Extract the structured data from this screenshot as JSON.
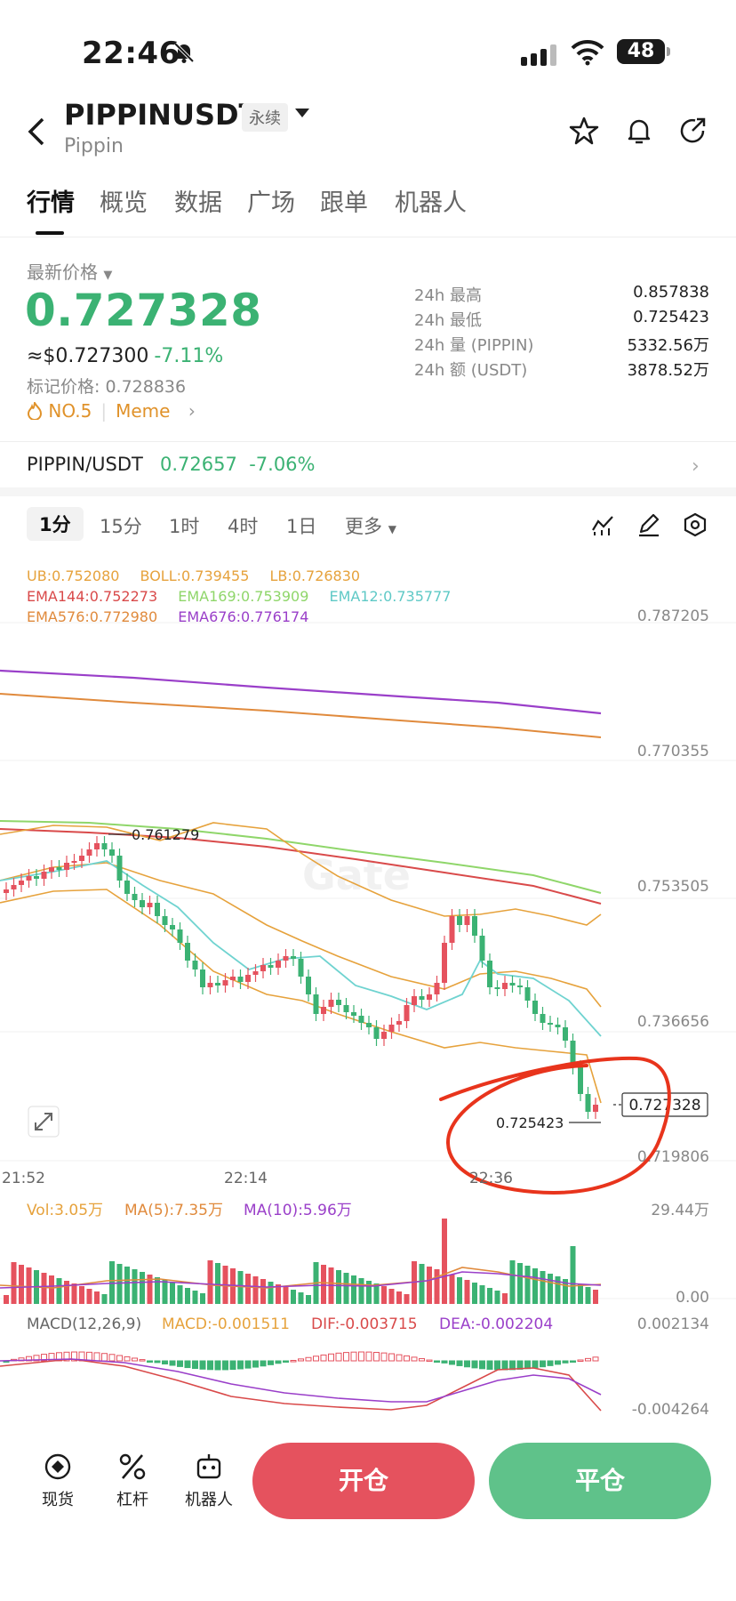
{
  "status_bar": {
    "time": "22:46",
    "battery": "48"
  },
  "header": {
    "symbol": "PIPPINUSDT",
    "contract_type": "永续",
    "name": "Pippin"
  },
  "tabs": [
    "行情",
    "概览",
    "数据",
    "广场",
    "跟单",
    "机器人"
  ],
  "ticker": {
    "latest_label": "最新价格",
    "last_price": "0.727328",
    "usd_price": "≈$0.727300",
    "change": "-7.11%",
    "mark_price": "标记价格: 0.728836",
    "rank": "NO.5",
    "tag": "Meme"
  },
  "stats": [
    {
      "k": "24h  最高",
      "v": "0.857838"
    },
    {
      "k": "24h  最低",
      "v": "0.725423"
    },
    {
      "k": "24h  量 (PIPPIN)",
      "v": "5332.56万"
    },
    {
      "k": "24h  额 (USDT)",
      "v": "3878.52万"
    }
  ],
  "spot": {
    "pair": "PIPPIN/USDT",
    "price": "0.72657",
    "change": "-7.06%"
  },
  "intervals": [
    "1分",
    "15分",
    "1时",
    "4时",
    "1日",
    "更多"
  ],
  "indicators": {
    "row1": [
      "UB:0.752080",
      "BOLL:0.739455",
      "LB:0.726830"
    ],
    "row2": [
      "EMA144:0.752273",
      "EMA169:0.753909",
      "EMA12:0.735777"
    ],
    "row3": [
      "EMA576:0.772980",
      "EMA676:0.776174"
    ]
  },
  "chart": {
    "y_labels": [
      "0.787205",
      "0.770355",
      "0.753505",
      "0.736656",
      "0.719806"
    ],
    "x_labels": [
      "21:52",
      "22:14",
      "22:36"
    ],
    "high_marker": "0.761279",
    "low_marker": "0.725423",
    "current_price": "0.727328",
    "colors": {
      "up": "#e5525e",
      "down": "#3bb273",
      "boll": "#e6a23c",
      "ema144": "#d94a4a",
      "ema169": "#8fd66a",
      "ema12": "#6fd3d0",
      "ema576": "#e08a3c",
      "ema676": "#9a3fc9"
    }
  },
  "volume": {
    "vol": "Vol:3.05万",
    "ma5": "MA(5):7.35万",
    "ma10": "MA(10):5.96万",
    "max": "29.44万",
    "zero": "0.00"
  },
  "macd": {
    "title": "MACD(12,26,9)",
    "macd": "MACD:-0.001511",
    "dif": "DIF:-0.003715",
    "dea": "DEA:-0.002204",
    "top": "0.002134",
    "bottom": "-0.004264"
  },
  "bottom_nav": {
    "spot": "现货",
    "margin": "杠杆",
    "bot": "机器人",
    "open": "开仓",
    "close": "平仓"
  }
}
